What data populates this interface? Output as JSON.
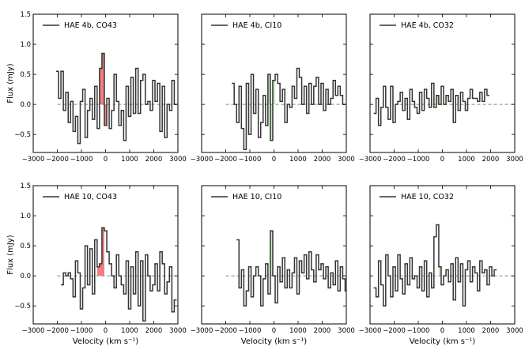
{
  "chart_data": [
    {
      "type": "line",
      "title": "",
      "legend": "HAE 4b, CO43",
      "fill_color": "#f08080",
      "fill_range": [
        -300,
        50
      ],
      "xlabel": "",
      "ylabel": "Flux (mJy)",
      "xlim": [
        -3000,
        3000
      ],
      "ylim": [
        -0.8,
        1.5
      ],
      "x_ticks": [
        "−3000",
        "−2000",
        "−1000",
        "0",
        "1000",
        "2000",
        "3000"
      ],
      "y_ticks": [
        "−0.5",
        "0.0",
        "0.5",
        "1.0",
        "1.5"
      ],
      "x_start": -2000,
      "step": 100,
      "values": [
        0.55,
        0.1,
        0.55,
        -0.1,
        0.2,
        -0.3,
        0.05,
        -0.45,
        -0.2,
        -0.65,
        0.05,
        0.25,
        -0.55,
        -0.1,
        0.1,
        -0.25,
        0.3,
        -0.4,
        0.6,
        0.85,
        -0.35,
        0.1,
        -0.4,
        -0.1,
        0.5,
        0.05,
        -0.35,
        -0.1,
        -0.6,
        0.3,
        -0.2,
        0.45,
        -0.15,
        0.6,
        -0.15,
        0.4,
        0.5,
        0.0,
        0.05,
        -0.1,
        0.4,
        0.05,
        0.35,
        -0.45,
        0.3,
        -0.55,
        0.0,
        -0.1,
        0.4,
        0.0
      ]
    },
    {
      "type": "line",
      "title": "",
      "legend": "HAE 4b, CI10",
      "fill_color": "#c8f0c0",
      "fill_range": [
        -250,
        100
      ],
      "xlabel": "",
      "ylabel": "",
      "xlim": [
        -3000,
        3000
      ],
      "ylim": [
        -0.8,
        1.5
      ],
      "x_ticks": [
        "−3000",
        "−2000",
        "−1000",
        "0",
        "1000",
        "2000",
        "3000"
      ],
      "y_ticks": [],
      "x_start": -1700,
      "step": 100,
      "values": [
        0.35,
        0.0,
        -0.3,
        0.3,
        -0.4,
        -0.75,
        0.35,
        -0.5,
        0.5,
        -0.15,
        0.25,
        -0.55,
        -0.3,
        0.15,
        -0.35,
        0.5,
        -0.6,
        0.4,
        0.5,
        0.35,
        0.05,
        0.25,
        -0.3,
        0.0,
        -0.05,
        0.3,
        0.1,
        0.6,
        0.45,
        0.0,
        0.3,
        -0.15,
        0.35,
        0.0,
        0.3,
        0.45,
        0.0,
        0.35,
        -0.1,
        0.25,
        0.0,
        0.1,
        0.4,
        0.15,
        0.3,
        0.15,
        0.0
      ]
    },
    {
      "type": "line",
      "title": "",
      "legend": "HAE 4b, CO32",
      "fill_color": "#e8d5a8",
      "fill_range": [
        -300,
        0
      ],
      "xlabel": "",
      "ylabel": "",
      "xlim": [
        -3000,
        3000
      ],
      "ylim": [
        -0.8,
        1.5
      ],
      "x_ticks": [
        "−3000",
        "−2000",
        "−1000",
        "0",
        "1000",
        "2000",
        "3000"
      ],
      "y_ticks": [],
      "x_start": -2800,
      "step": 100,
      "values": [
        -0.15,
        0.1,
        -0.35,
        -0.05,
        0.3,
        -0.05,
        -0.25,
        0.3,
        -0.3,
        0.0,
        0.05,
        0.2,
        -0.1,
        0.1,
        -0.25,
        0.25,
        0.05,
        -0.05,
        -0.15,
        0.2,
        -0.1,
        0.25,
        0.1,
        -0.05,
        0.35,
        -0.05,
        0.15,
        0.0,
        0.3,
        0.0,
        0.15,
        0.05,
        0.25,
        -0.3,
        0.15,
        -0.1,
        0.2,
        0.05,
        -0.1,
        0.1,
        0.25,
        0.1,
        0.1,
        0.05,
        0.2,
        0.05,
        0.25,
        0.15
      ]
    },
    {
      "type": "line",
      "title": "",
      "legend": "HAE 10, CO43",
      "fill_color": "#f08080",
      "fill_range": [
        -400,
        0
      ],
      "xlabel": "Velocity (km s⁻¹)",
      "ylabel": "Flux (mJy)",
      "xlim": [
        -3000,
        3000
      ],
      "ylim": [
        -0.8,
        1.5
      ],
      "x_ticks": [
        "−3000",
        "−2000",
        "−1000",
        "0",
        "1000",
        "2000",
        "3000"
      ],
      "y_ticks": [
        "−0.5",
        "0.0",
        "0.5",
        "1.0",
        "1.5"
      ],
      "x_start": -1800,
      "step": 100,
      "values": [
        -0.15,
        0.05,
        0.0,
        0.05,
        -0.05,
        -0.35,
        0.25,
        0.05,
        -0.55,
        -0.2,
        0.5,
        -0.15,
        0.45,
        -0.3,
        0.6,
        0.15,
        0.2,
        0.8,
        0.75,
        0.4,
        0.2,
        0.0,
        -0.2,
        0.35,
        0.0,
        -0.15,
        -0.3,
        0.25,
        -0.55,
        0.15,
        -0.3,
        0.4,
        -0.5,
        0.25,
        -0.75,
        0.35,
        0.0,
        -0.25,
        -0.15,
        0.2,
        -0.25,
        0.4,
        0.2,
        -0.3,
        -0.1,
        0.15,
        -0.6,
        -0.4
      ]
    },
    {
      "type": "line",
      "title": "",
      "legend": "HAE 10, CI10",
      "fill_color": "#c8f0c0",
      "fill_range": [
        -200,
        100
      ],
      "xlabel": "Velocity (km s⁻¹)",
      "ylabel": "",
      "xlim": [
        -3000,
        3000
      ],
      "ylim": [
        -0.8,
        1.5
      ],
      "x_ticks": [
        "−3000",
        "−2000",
        "−1000",
        "0",
        "1000",
        "2000",
        "3000"
      ],
      "y_ticks": [],
      "x_start": -1500,
      "step": 100,
      "values": [
        0.6,
        -0.2,
        0.1,
        -0.5,
        -0.25,
        0.15,
        -0.35,
        0.0,
        0.15,
        0.0,
        -0.5,
        -0.05,
        0.2,
        -0.3,
        0.75,
        0.0,
        -0.45,
        0.15,
        -0.1,
        0.3,
        -0.2,
        0.1,
        -0.2,
        0.05,
        0.3,
        -0.3,
        0.25,
        0.05,
        0.35,
        -0.05,
        0.4,
        0.1,
        -0.1,
        0.35,
        0.1,
        0.2,
        -0.05,
        0.15,
        -0.2,
        0.05,
        -0.15,
        0.25,
        -0.25,
        0.15,
        -0.05,
        -0.25
      ]
    },
    {
      "type": "line",
      "title": "",
      "legend": "HAE 10, CO32",
      "fill_color": "#e8d5a8",
      "fill_range": [
        -200,
        0
      ],
      "xlabel": "Velocity (km s⁻¹)",
      "ylabel": "",
      "xlim": [
        -3000,
        3000
      ],
      "ylim": [
        -0.8,
        1.5
      ],
      "x_ticks": [
        "−3000",
        "−2000",
        "−1000",
        "0",
        "1000",
        "2000",
        "3000"
      ],
      "y_ticks": [],
      "x_start": -2800,
      "step": 100,
      "values": [
        -0.2,
        -0.35,
        0.25,
        -0.15,
        -0.5,
        0.35,
        0.0,
        -0.35,
        0.15,
        -0.25,
        0.35,
        -0.05,
        -0.3,
        0.2,
        -0.15,
        0.3,
        -0.05,
        0.0,
        -0.2,
        0.15,
        -0.25,
        0.25,
        -0.35,
        0.05,
        -0.2,
        0.65,
        0.85,
        0.15,
        -0.15,
        0.0,
        0.1,
        -0.1,
        0.2,
        -0.4,
        0.3,
        -0.1,
        0.2,
        -0.5,
        0.1,
        0.25,
        -0.1,
        0.15,
        0.05,
        -0.25,
        0.25,
        0.05,
        0.1,
        -0.15,
        0.15,
        0.0,
        0.1
      ]
    }
  ]
}
